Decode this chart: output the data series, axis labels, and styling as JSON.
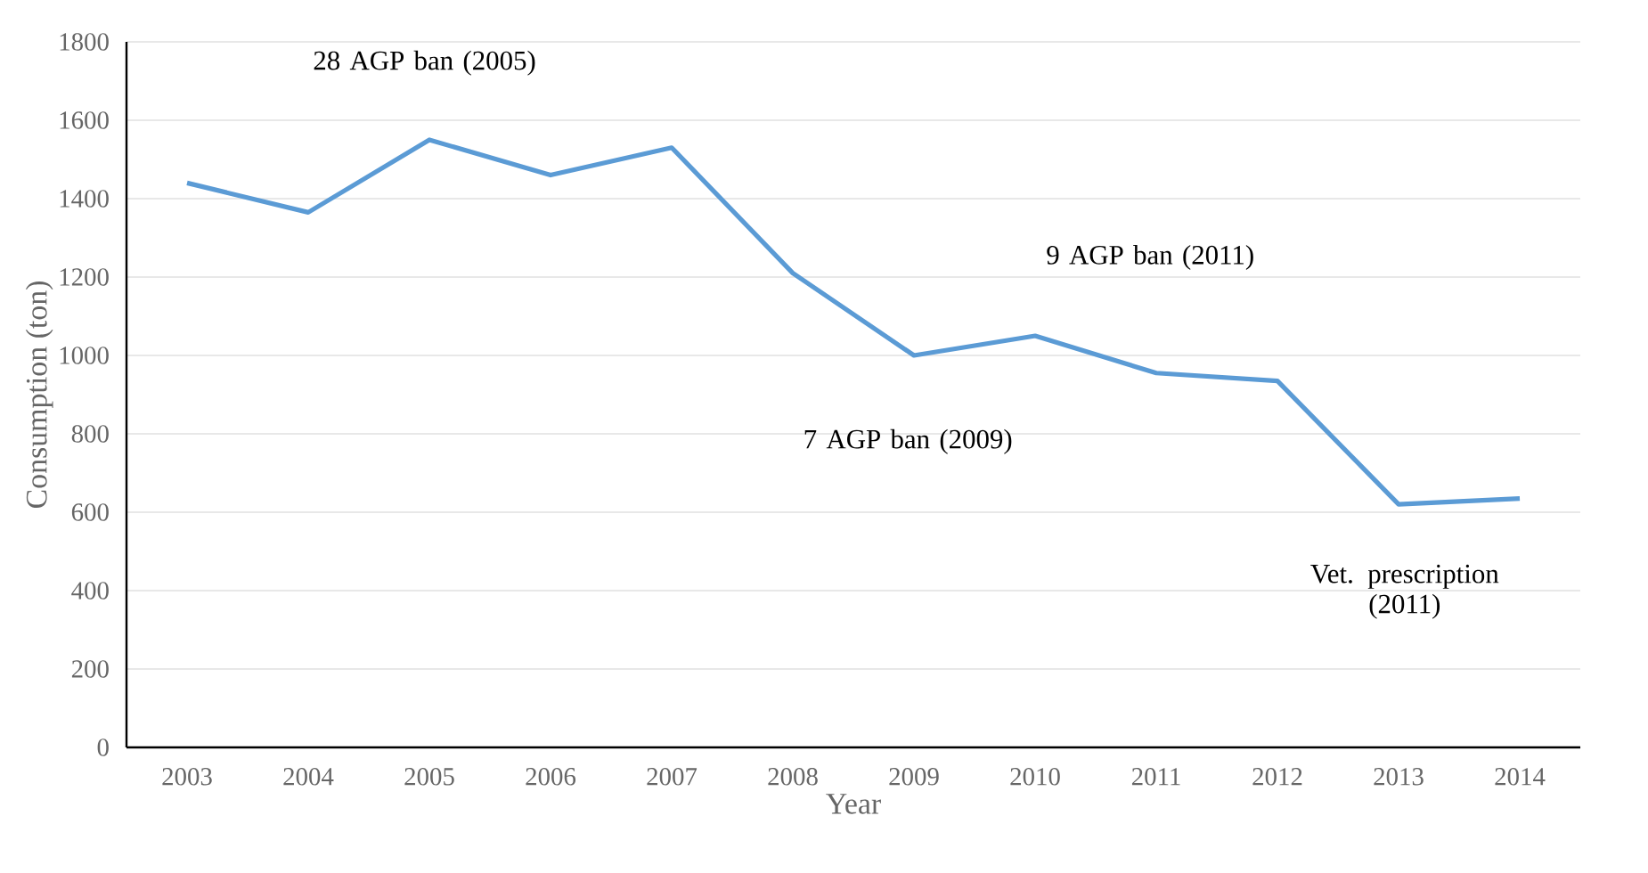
{
  "chart_data": {
    "type": "line",
    "xlabel": "Year",
    "ylabel": "Consumption (ton)",
    "categories": [
      "2003",
      "2004",
      "2005",
      "2006",
      "2007",
      "2008",
      "2009",
      "2010",
      "2011",
      "2012",
      "2013",
      "2014"
    ],
    "values": [
      1440,
      1365,
      1550,
      1460,
      1530,
      1210,
      1000,
      1050,
      955,
      935,
      620,
      635
    ],
    "color": "#5b9bd5",
    "ylim": [
      0,
      1800
    ],
    "yticks": [
      0,
      200,
      400,
      600,
      800,
      1000,
      1200,
      1400,
      1600,
      1800
    ],
    "grid": "y",
    "marker": "none",
    "line_style": "solid",
    "annotations": [
      "28 AGP ban (2005)",
      "9 AGP ban (2011)",
      "7 AGP ban (2009)",
      "Vet. prescription (2011)"
    ]
  }
}
